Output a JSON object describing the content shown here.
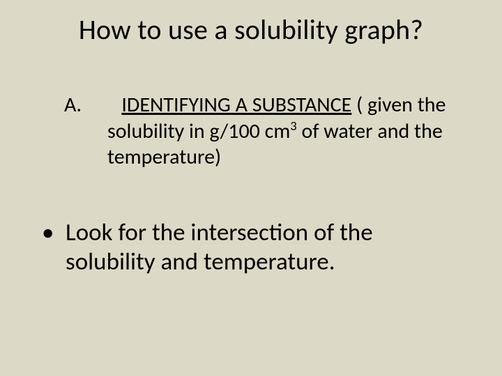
{
  "slide": {
    "background_color": "#dcd9c6",
    "text_color": "#000000",
    "font_family": "Calibri",
    "title": {
      "text": "How to use a solubility graph?",
      "fontsize": 40
    },
    "item_a": {
      "marker": "A.",
      "underlined_label": "IDENTIFYING A SUBSTANCE",
      "rest_line1": " ( given the",
      "line2_pre": "solubility in g/100 cm",
      "superscript": "3",
      "line2_post": " of water and the",
      "line3": "temperature)",
      "fontsize": 30
    },
    "bullet": {
      "marker": "•",
      "text": "Look for the intersection of the solubility and temperature.",
      "fontsize": 35
    }
  }
}
